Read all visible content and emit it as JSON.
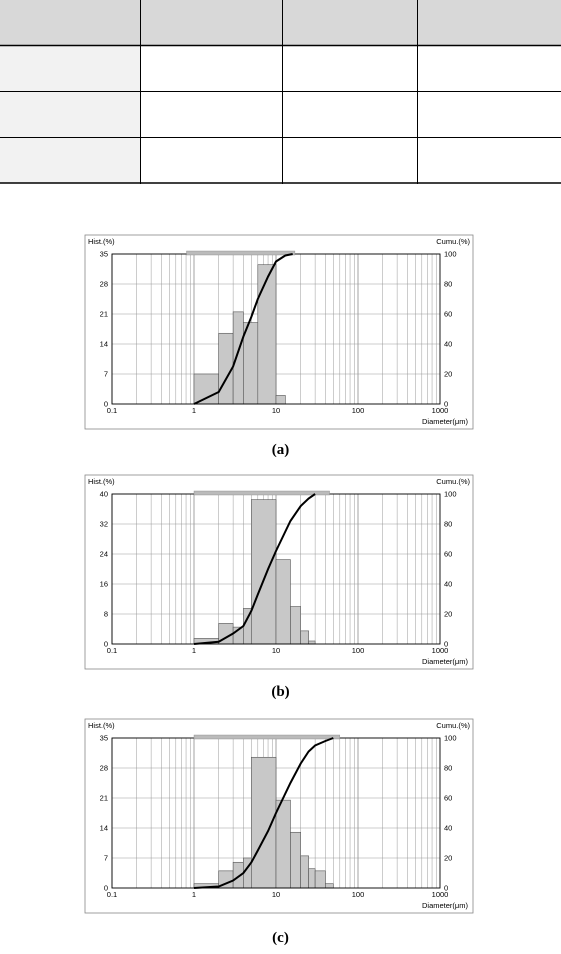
{
  "table": {
    "header_fill": "#d8d8d8",
    "row_label_fill": "#f2f2f2",
    "columns": 4,
    "rows": 3
  },
  "chart_data": [
    {
      "type": "bar",
      "caption": "(a)",
      "hist_label": "Hist.(%)",
      "cumu_label": "Cumu.(%)",
      "xlabel": "Diameter(μm)",
      "x_scale": "log",
      "xlim": [
        0.1,
        1000
      ],
      "x_ticks": [
        "0.1",
        "1",
        "10",
        "100",
        "1000"
      ],
      "ylim_left": [
        0,
        35
      ],
      "y_ticks_left": [
        "0",
        "7",
        "14",
        "21",
        "28",
        "35"
      ],
      "ylim_right": [
        0,
        100
      ],
      "y_ticks_right": [
        "0",
        "20",
        "40",
        "60",
        "80",
        "100"
      ],
      "range_bar": [
        0.81,
        17
      ],
      "bins": [
        {
          "lo": 1.0,
          "hi": 2.0,
          "v": 7
        },
        {
          "lo": 2.0,
          "hi": 3.0,
          "v": 16.5
        },
        {
          "lo": 3.0,
          "hi": 4.0,
          "v": 21.5
        },
        {
          "lo": 4.0,
          "hi": 6.0,
          "v": 19
        },
        {
          "lo": 6.0,
          "hi": 10.0,
          "v": 32.5
        },
        {
          "lo": 10.0,
          "hi": 13.0,
          "v": 2
        }
      ],
      "cumulative": [
        [
          1.0,
          0
        ],
        [
          2.0,
          8
        ],
        [
          3.0,
          25
        ],
        [
          4.0,
          45
        ],
        [
          5.0,
          58
        ],
        [
          6.0,
          70
        ],
        [
          8.0,
          85
        ],
        [
          10.0,
          95
        ],
        [
          13.0,
          99
        ],
        [
          16.0,
          100
        ]
      ],
      "grid": true,
      "colors": {
        "bar": "#c8c8c8",
        "line": "#000000",
        "grid": "#999999"
      }
    },
    {
      "type": "bar",
      "caption": "(b)",
      "hist_label": "Hist.(%)",
      "cumu_label": "Cumu.(%)",
      "xlabel": "Diameter(μm)",
      "x_scale": "log",
      "xlim": [
        0.1,
        1000
      ],
      "x_ticks": [
        "0.1",
        "1",
        "10",
        "100",
        "1000"
      ],
      "ylim_left": [
        0,
        40
      ],
      "y_ticks_left": [
        "0",
        "8",
        "16",
        "24",
        "32",
        "40"
      ],
      "ylim_right": [
        0,
        100
      ],
      "y_ticks_right": [
        "0",
        "20",
        "40",
        "60",
        "80",
        "100"
      ],
      "range_bar": [
        1.0,
        45
      ],
      "bins": [
        {
          "lo": 1.0,
          "hi": 2.0,
          "v": 1.5
        },
        {
          "lo": 2.0,
          "hi": 3.0,
          "v": 5.5
        },
        {
          "lo": 3.0,
          "hi": 4.0,
          "v": 4.5
        },
        {
          "lo": 4.0,
          "hi": 5.0,
          "v": 9.5
        },
        {
          "lo": 5.0,
          "hi": 10.0,
          "v": 38.5
        },
        {
          "lo": 10.0,
          "hi": 15.0,
          "v": 22.5
        },
        {
          "lo": 15.0,
          "hi": 20.0,
          "v": 10
        },
        {
          "lo": 20.0,
          "hi": 25.0,
          "v": 3.5
        },
        {
          "lo": 25.0,
          "hi": 30.0,
          "v": 0.8
        }
      ],
      "cumulative": [
        [
          1.0,
          0
        ],
        [
          2.0,
          1.5
        ],
        [
          3.0,
          7
        ],
        [
          4.0,
          12
        ],
        [
          5.0,
          22
        ],
        [
          6.0,
          33
        ],
        [
          8.0,
          50
        ],
        [
          10.0,
          62
        ],
        [
          15.0,
          82
        ],
        [
          20.0,
          92
        ],
        [
          25.0,
          97
        ],
        [
          30.0,
          100
        ]
      ],
      "grid": true,
      "colors": {
        "bar": "#c8c8c8",
        "line": "#000000",
        "grid": "#999999"
      }
    },
    {
      "type": "bar",
      "caption": "(c)",
      "hist_label": "Hist.(%)",
      "cumu_label": "Cumu.(%)",
      "xlabel": "Diameter(μm)",
      "x_scale": "log",
      "xlim": [
        0.1,
        1000
      ],
      "x_ticks": [
        "0.1",
        "1",
        "10",
        "100",
        "1000"
      ],
      "ylim_left": [
        0,
        35
      ],
      "y_ticks_left": [
        "0",
        "7",
        "14",
        "21",
        "28",
        "35"
      ],
      "ylim_right": [
        0,
        100
      ],
      "y_ticks_right": [
        "0",
        "20",
        "40",
        "60",
        "80",
        "100"
      ],
      "range_bar": [
        1.0,
        60
      ],
      "bins": [
        {
          "lo": 1.0,
          "hi": 2.0,
          "v": 1
        },
        {
          "lo": 2.0,
          "hi": 3.0,
          "v": 4
        },
        {
          "lo": 3.0,
          "hi": 4.0,
          "v": 6
        },
        {
          "lo": 4.0,
          "hi": 5.0,
          "v": 7
        },
        {
          "lo": 5.0,
          "hi": 10.0,
          "v": 30.5
        },
        {
          "lo": 10.0,
          "hi": 15.0,
          "v": 20.5
        },
        {
          "lo": 15.0,
          "hi": 20.0,
          "v": 13
        },
        {
          "lo": 20.0,
          "hi": 25.0,
          "v": 7.5
        },
        {
          "lo": 25.0,
          "hi": 30.0,
          "v": 4.5
        },
        {
          "lo": 30.0,
          "hi": 40.0,
          "v": 4
        },
        {
          "lo": 40.0,
          "hi": 50.0,
          "v": 1
        }
      ],
      "cumulative": [
        [
          1.0,
          0
        ],
        [
          2.0,
          1
        ],
        [
          3.0,
          5
        ],
        [
          4.0,
          10
        ],
        [
          5.0,
          17
        ],
        [
          6.0,
          25
        ],
        [
          8.0,
          38
        ],
        [
          10.0,
          50
        ],
        [
          15.0,
          70
        ],
        [
          20.0,
          83
        ],
        [
          25.0,
          91
        ],
        [
          30.0,
          95
        ],
        [
          40.0,
          98
        ],
        [
          50.0,
          100
        ]
      ],
      "grid": true,
      "colors": {
        "bar": "#c8c8c8",
        "line": "#000000",
        "grid": "#999999"
      }
    }
  ]
}
